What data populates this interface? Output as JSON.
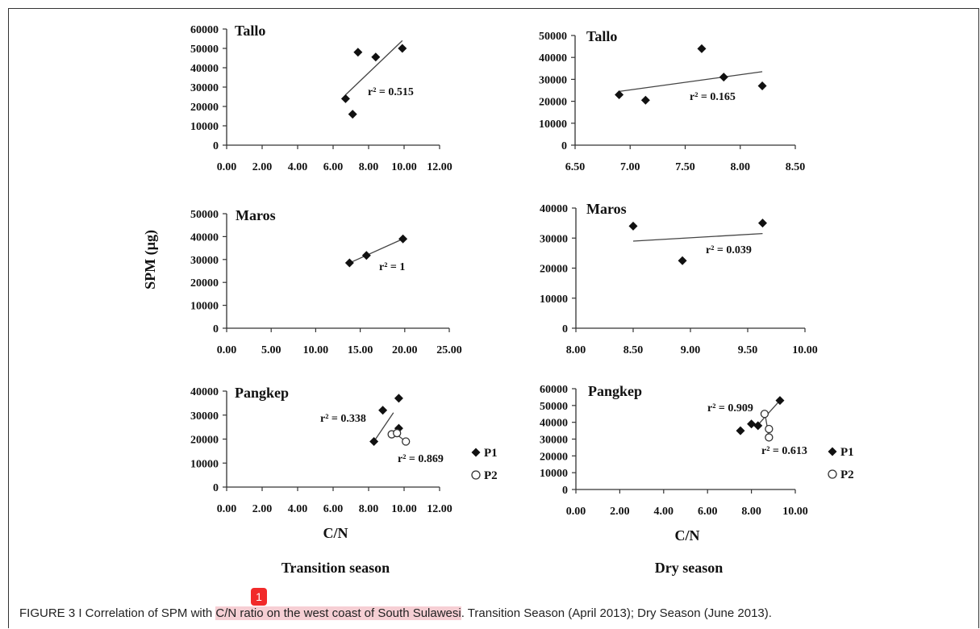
{
  "figure": {
    "y_label": "SPM (µg)",
    "x_label_left": "C/N",
    "x_label_right": "C/N",
    "season_left": "Transition season",
    "season_right": "Dry season",
    "caption_prefix": "FIGURE 3 I Correlation of SPM with ",
    "caption_highlight": "C/N ratio on the west coast of South Sulawesi",
    "caption_suffix": ". Transition Season (April 2013); Dry Season (June 2013).",
    "marker_label": "1",
    "colors": {
      "marker": "#111111",
      "highlight": "#f6cfd4",
      "badge": "#f12a2a"
    }
  },
  "chart_data": [
    {
      "type": "scatter",
      "title": "Tallo",
      "xlim": [
        0,
        12
      ],
      "ylim": [
        0,
        60000
      ],
      "x_ticks": [
        "0.00",
        "2.00",
        "4.00",
        "6.00",
        "8.00",
        "10.00",
        "12.00"
      ],
      "y_ticks": [
        "0",
        "10000",
        "20000",
        "30000",
        "40000",
        "50000",
        "60000"
      ],
      "series": [
        {
          "marker": "diamond-filled",
          "points": [
            [
              6.7,
              24000
            ],
            [
              7.1,
              16000
            ],
            [
              7.4,
              48000
            ],
            [
              8.4,
              45500
            ],
            [
              9.9,
              50000
            ]
          ]
        }
      ],
      "trendlines": [
        {
          "from": [
            6.7,
            26000
          ],
          "to": [
            9.9,
            54000
          ]
        }
      ],
      "annotations": [
        "r² = 0.515"
      ]
    },
    {
      "type": "scatter",
      "title": "Tallo",
      "xlim": [
        6.5,
        8.5
      ],
      "ylim": [
        0,
        50000
      ],
      "x_ticks": [
        "6.50",
        "7.00",
        "7.50",
        "8.00",
        "8.50"
      ],
      "y_ticks": [
        "0",
        "10000",
        "20000",
        "30000",
        "40000",
        "50000"
      ],
      "series": [
        {
          "marker": "diamond-filled",
          "points": [
            [
              6.9,
              23000
            ],
            [
              7.14,
              20500
            ],
            [
              7.65,
              44000
            ],
            [
              7.85,
              31000
            ],
            [
              8.2,
              27000
            ]
          ]
        }
      ],
      "trendlines": [
        {
          "from": [
            6.9,
            24500
          ],
          "to": [
            8.2,
            33500
          ]
        }
      ],
      "annotations": [
        "r² = 0.165"
      ]
    },
    {
      "type": "scatter",
      "title": "Maros",
      "xlim": [
        0,
        25
      ],
      "ylim": [
        0,
        50000
      ],
      "x_ticks": [
        "0.00",
        "5.00",
        "10.00",
        "15.00",
        "20.00",
        "25.00"
      ],
      "y_ticks": [
        "0",
        "10000",
        "20000",
        "30000",
        "40000",
        "50000"
      ],
      "series": [
        {
          "marker": "diamond-filled",
          "points": [
            [
              13.8,
              28500
            ],
            [
              15.7,
              31800
            ],
            [
              19.8,
              39000
            ]
          ]
        }
      ],
      "trendlines": [
        {
          "from": [
            13.8,
            28500
          ],
          "to": [
            19.8,
            39000
          ]
        }
      ],
      "annotations": [
        "r² = 1"
      ]
    },
    {
      "type": "scatter",
      "title": "Maros",
      "xlim": [
        8,
        10
      ],
      "ylim": [
        0,
        40000
      ],
      "x_ticks": [
        "8.00",
        "8.50",
        "9.00",
        "9.50",
        "10.00"
      ],
      "y_ticks": [
        "0",
        "10000",
        "20000",
        "30000",
        "40000"
      ],
      "series": [
        {
          "marker": "diamond-filled",
          "points": [
            [
              8.5,
              34000
            ],
            [
              8.93,
              22500
            ],
            [
              9.63,
              35000
            ]
          ]
        }
      ],
      "trendlines": [
        {
          "from": [
            8.5,
            29000
          ],
          "to": [
            9.63,
            31500
          ]
        }
      ],
      "annotations": [
        "r² = 0.039"
      ]
    },
    {
      "type": "scatter",
      "title": "Pangkep",
      "xlim": [
        0,
        12
      ],
      "ylim": [
        0,
        40000
      ],
      "x_ticks": [
        "0.00",
        "2.00",
        "4.00",
        "6.00",
        "8.00",
        "10.00",
        "12.00"
      ],
      "y_ticks": [
        "0",
        "10000",
        "20000",
        "30000",
        "40000"
      ],
      "series": [
        {
          "name": "P1",
          "marker": "diamond-filled",
          "points": [
            [
              8.3,
              19000
            ],
            [
              8.8,
              32000
            ],
            [
              9.7,
              37000
            ],
            [
              9.7,
              24500
            ]
          ]
        },
        {
          "name": "P2",
          "marker": "circle-open",
          "points": [
            [
              9.3,
              22000
            ],
            [
              9.6,
              22500
            ],
            [
              10.1,
              19000
            ]
          ]
        }
      ],
      "trendlines": [
        {
          "from": [
            8.3,
            19000
          ],
          "to": [
            9.4,
            31000
          ]
        },
        {
          "from": [
            9.3,
            23500
          ],
          "to": [
            10.1,
            19000
          ]
        }
      ],
      "annotations": [
        "r² = 0.338",
        "r² = 0.869"
      ]
    },
    {
      "type": "scatter",
      "title": "Pangkep",
      "xlim": [
        0,
        10
      ],
      "ylim": [
        0,
        60000
      ],
      "x_ticks": [
        "0.00",
        "2.00",
        "4.00",
        "6.00",
        "8.00",
        "10.00"
      ],
      "y_ticks": [
        "0",
        "10000",
        "20000",
        "30000",
        "40000",
        "50000",
        "60000"
      ],
      "series": [
        {
          "name": "P1",
          "marker": "diamond-filled",
          "points": [
            [
              7.5,
              35000
            ],
            [
              8.0,
              39000
            ],
            [
              8.3,
              38000
            ],
            [
              9.3,
              53000
            ]
          ]
        },
        {
          "name": "P2",
          "marker": "circle-open",
          "points": [
            [
              8.6,
              45000
            ],
            [
              8.8,
              36000
            ],
            [
              8.8,
              31000
            ]
          ]
        }
      ],
      "trendlines": [
        {
          "from": [
            8.3,
            38500
          ],
          "to": [
            9.3,
            53000
          ]
        },
        {
          "from": [
            8.6,
            46500
          ],
          "to": [
            8.8,
            31000
          ]
        }
      ],
      "annotations": [
        "r² = 0.909",
        "r² = 0.613"
      ]
    }
  ]
}
